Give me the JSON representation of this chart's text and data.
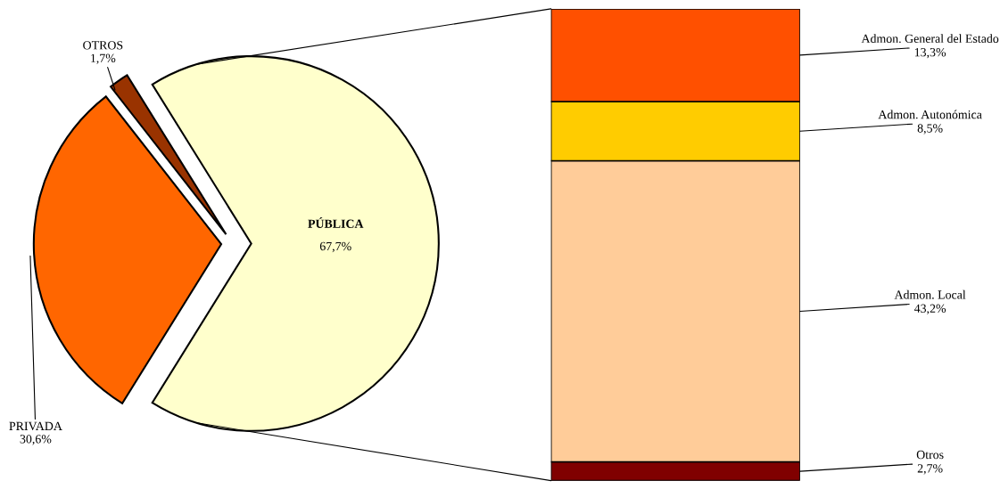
{
  "chart_data": [
    {
      "type": "pie",
      "categories": [
        "PÚBLICA",
        "OTROS",
        "PRIVADA"
      ],
      "values": [
        67.7,
        1.7,
        30.6
      ],
      "colors": [
        "#ffffcc",
        "#993300",
        "#ff6600"
      ],
      "value_labels": [
        "67,7%",
        "1,7%",
        "30,6%"
      ],
      "legend": false
    },
    {
      "type": "bar",
      "stacked": true,
      "categories": [
        null
      ],
      "series": [
        {
          "name": "Otros",
          "color": "#800000",
          "values": [
            2.7
          ],
          "value_labels": [
            "2,7%"
          ]
        },
        {
          "name": "Admon. Local",
          "color": "#ffcc99",
          "values": [
            43.2
          ],
          "value_labels": [
            "43,2%"
          ]
        },
        {
          "name": "Admon. Autonómica",
          "color": "#ffcc00",
          "values": [
            8.5
          ],
          "value_labels": [
            "8,5%"
          ]
        },
        {
          "name": "Admon. General del Estado",
          "color": "#ff5000",
          "values": [
            13.3
          ],
          "value_labels": [
            "13,3%"
          ]
        }
      ]
    }
  ]
}
